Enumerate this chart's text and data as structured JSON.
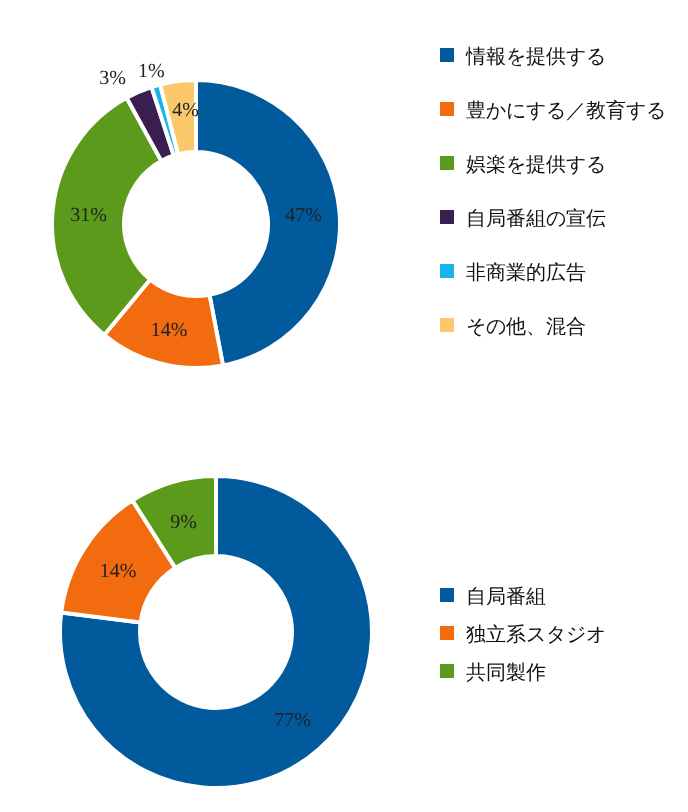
{
  "chart_data": [
    {
      "type": "donut",
      "categories": [
        "情報を提供する",
        "豊かにする／教育する",
        "娯楽を提供する",
        "自局番組の宣伝",
        "非商業的広告",
        "その他、混合"
      ],
      "values": [
        47,
        14,
        31,
        3,
        1,
        4
      ],
      "value_labels": [
        "47%",
        "14%",
        "31%",
        "3%",
        "1%",
        "4%"
      ],
      "colors": [
        "#005a9c",
        "#f26b0f",
        "#5b9a1a",
        "#3a1e4f",
        "#17b4ee",
        "#fbc96b"
      ],
      "legend": "right"
    },
    {
      "type": "donut",
      "categories": [
        "自局番組",
        "独立系スタジオ",
        "共同製作"
      ],
      "values": [
        77,
        14,
        9
      ],
      "value_labels": [
        "77%",
        "14%",
        "9%"
      ],
      "colors": [
        "#005a9c",
        "#f26b0f",
        "#5b9a1a"
      ],
      "legend": "right"
    }
  ]
}
